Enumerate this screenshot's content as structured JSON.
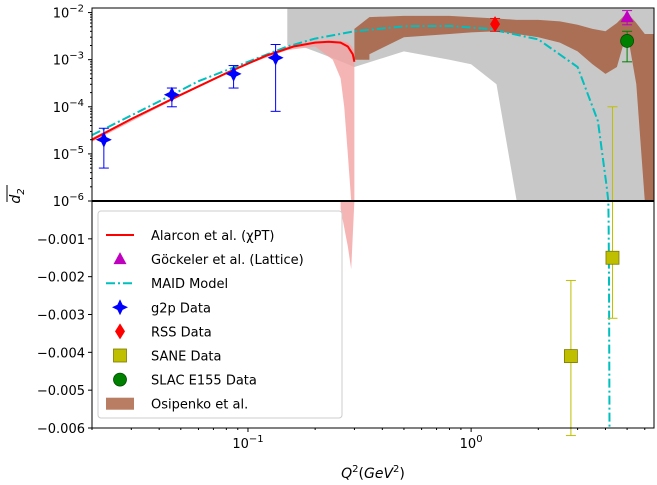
{
  "chart_data": {
    "type": "scatter",
    "xlabel": "Q^2(GeV^2)",
    "ylabel": "d_2 (overlined)",
    "x_scale": "log",
    "xlim": [
      0.02,
      6.6
    ],
    "x_ticks": [
      {
        "value": 0.1,
        "base": "10",
        "exp": "−1"
      },
      {
        "value": 1,
        "base": "10",
        "exp": "0"
      }
    ],
    "upper_panel": {
      "y_scale": "log",
      "ylim": [
        1e-06,
        0.0125
      ],
      "y_ticks": [
        {
          "value": 1e-06,
          "base": "10",
          "exp": "−6"
        },
        {
          "value": 1e-05,
          "base": "10",
          "exp": "−5"
        },
        {
          "value": 0.0001,
          "base": "10",
          "exp": "−4"
        },
        {
          "value": 0.001,
          "base": "10",
          "exp": "−3"
        },
        {
          "value": 0.01,
          "base": "10",
          "exp": "−2"
        }
      ]
    },
    "lower_panel": {
      "y_scale": "linear",
      "ylim": [
        -0.006,
        0
      ],
      "y_ticks": [
        {
          "value": -0.001,
          "label": "−0.001"
        },
        {
          "value": -0.002,
          "label": "−0.002"
        },
        {
          "value": -0.003,
          "label": "−0.003"
        },
        {
          "value": -0.004,
          "label": "−0.004"
        },
        {
          "value": -0.005,
          "label": "−0.005"
        },
        {
          "value": -0.006,
          "label": "−0.006"
        }
      ]
    },
    "legend": {
      "position": "lower-left",
      "entries": [
        {
          "key": "alarcon",
          "label": "Alarcon et al. (χPT)",
          "color": "#ff0000",
          "marker": "line"
        },
        {
          "key": "gockeler",
          "label": "Göckeler et al. (Lattice)",
          "color": "#bf00bf",
          "marker": "triangle"
        },
        {
          "key": "maid",
          "label": "MAID Model",
          "color": "#00bfbf",
          "marker": "dashdot"
        },
        {
          "key": "g2p",
          "label": "g2p Data",
          "color": "#0000ff",
          "marker": "star4"
        },
        {
          "key": "rss",
          "label": "RSS Data",
          "color": "#ff0000",
          "marker": "diamond"
        },
        {
          "key": "sane",
          "label": "SANE Data",
          "color": "#bfbf00",
          "marker": "square"
        },
        {
          "key": "slac",
          "label": "SLAC E155 Data",
          "color": "#008000",
          "marker": "circle"
        },
        {
          "key": "osipenko",
          "label": "Osipenko et al.",
          "color": "#a0522d",
          "marker": "patch"
        }
      ]
    },
    "series": [
      {
        "key": "g2p",
        "points": [
          {
            "x": 0.0226,
            "y": 2e-05,
            "ylo": 5e-06,
            "yhi": 3.5e-05
          },
          {
            "x": 0.0456,
            "y": 0.00018,
            "ylo": 0.0001,
            "yhi": 0.00025
          },
          {
            "x": 0.0862,
            "y": 0.0005,
            "ylo": 0.00025,
            "yhi": 0.00075
          },
          {
            "x": 0.133,
            "y": 0.0011,
            "ylo": 8e-05,
            "yhi": 0.0021
          }
        ]
      },
      {
        "key": "rss",
        "points": [
          {
            "x": 1.28,
            "y": 0.0057,
            "ylo": 0.004,
            "yhi": 0.0075
          }
        ]
      },
      {
        "key": "gockeler",
        "points": [
          {
            "x": 5.0,
            "y": 0.008,
            "ylo": 0.0055,
            "yhi": 0.011
          }
        ]
      },
      {
        "key": "slac",
        "points": [
          {
            "x": 5.0,
            "y": 0.0025,
            "ylo": 0.0009,
            "yhi": 0.004
          }
        ]
      },
      {
        "key": "sane",
        "points": [
          {
            "x": 2.8,
            "y": -0.0041,
            "ylo": -0.0062,
            "yhi": -0.0021
          },
          {
            "x": 4.3,
            "y": -0.0015,
            "ylo": -0.0031,
            "yhi": 0.0001
          }
        ]
      },
      {
        "key": "alarcon",
        "curve": [
          [
            0.02,
            2e-05
          ],
          [
            0.03,
            5.5e-05
          ],
          [
            0.05,
            0.00018
          ],
          [
            0.08,
            0.00052
          ],
          [
            0.12,
            0.0012
          ],
          [
            0.16,
            0.0019
          ],
          [
            0.2,
            0.0023
          ],
          [
            0.23,
            0.0024
          ],
          [
            0.26,
            0.0023
          ],
          [
            0.28,
            0.0019
          ],
          [
            0.295,
            0.0013
          ],
          [
            0.3,
            0.0009
          ]
        ],
        "band": {
          "x": [
            0.02,
            0.05,
            0.1,
            0.15,
            0.2,
            0.24,
            0.26,
            0.27,
            0.28,
            0.29,
            0.3
          ],
          "lower": [
            1.8e-05,
            0.00017,
            0.0008,
            0.0016,
            0.0019,
            0.001,
            0.0004,
            0.0001,
            1e-05,
            1e-06,
            1e-06
          ],
          "upper": [
            2.2e-05,
            0.00019,
            0.0009,
            0.0019,
            0.0025,
            0.0026,
            0.0025,
            0.0024,
            0.0023,
            0.002,
            0.0015
          ],
          "lower_linear_tail": {
            "x": [
              0.26,
              0.28,
              0.29
            ],
            "y": [
              -0.0002,
              -0.0012,
              -0.0018
            ]
          }
        }
      },
      {
        "key": "maid",
        "curve": [
          [
            0.02,
            2.5e-05
          ],
          [
            0.04,
            0.00013
          ],
          [
            0.06,
            0.00035
          ],
          [
            0.1,
            0.0009
          ],
          [
            0.15,
            0.0019
          ],
          [
            0.2,
            0.0028
          ],
          [
            0.3,
            0.004
          ],
          [
            0.5,
            0.0051
          ],
          [
            0.8,
            0.0052
          ],
          [
            1.2,
            0.0045
          ],
          [
            2.0,
            0.0027
          ],
          [
            3.0,
            0.0007
          ],
          [
            3.7,
            5e-05
          ],
          [
            4.05,
            2e-06
          ],
          [
            4.12,
            1e-06
          ],
          [
            4.13,
            -0.0005
          ],
          [
            4.15,
            -0.002
          ],
          [
            4.17,
            -0.006
          ]
        ]
      },
      {
        "key": "osipenko",
        "band": {
          "x": [
            0.3,
            0.35,
            0.35,
            0.5,
            0.8,
            1.0,
            1.3,
            1.6,
            2.0,
            2.5,
            3.0,
            3.5,
            4.0,
            4.5,
            5.0,
            5.5,
            6.0,
            6.6
          ],
          "lower": [
            0.001,
            0.001,
            0.0013,
            0.003,
            0.0035,
            0.0038,
            0.004,
            0.0035,
            0.003,
            0.0023,
            0.0015,
            0.0008,
            0.0005,
            0.0007,
            0.004,
            0.0003,
            1e-06,
            1e-06
          ],
          "upper": [
            0.0045,
            0.008,
            0.008,
            0.0085,
            0.0085,
            0.008,
            0.0075,
            0.007,
            0.007,
            0.0065,
            0.0055,
            0.0045,
            0.004,
            0.006,
            0.01,
            0.006,
            0.0035,
            0.0035
          ]
        }
      },
      {
        "key": "gray_band",
        "color": "#c8c8c8",
        "band": {
          "x": [
            0.15,
            0.18,
            0.2,
            0.25,
            0.3,
            0.5,
            0.8,
            1.0,
            1.3,
            1.6,
            2.0,
            2.5,
            3.0,
            4.0,
            5.0,
            6.0,
            6.6
          ],
          "lower": [
            0.002,
            0.0018,
            0.0015,
            0.001,
            0.0007,
            0.0015,
            0.001,
            0.0008,
            0.0003,
            1e-06,
            1e-06,
            1e-06,
            1e-06,
            1e-06,
            1e-06,
            1e-06,
            1e-06
          ],
          "upper": [
            0.012,
            0.012,
            0.012,
            0.012,
            0.012,
            0.012,
            0.012,
            0.012,
            0.012,
            0.012,
            0.012,
            0.012,
            0.012,
            0.012,
            0.012,
            0.012,
            0.012
          ]
        }
      }
    ]
  }
}
